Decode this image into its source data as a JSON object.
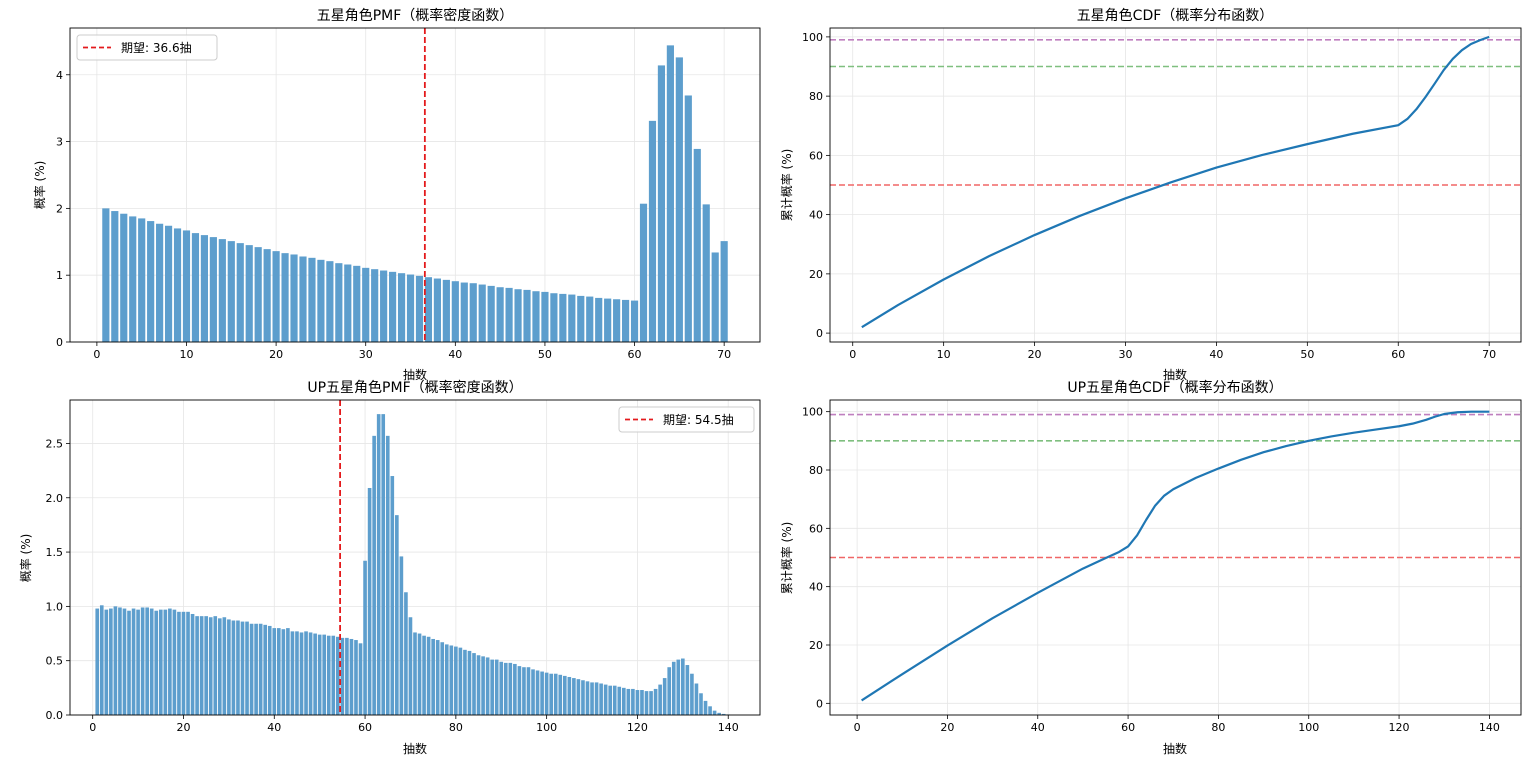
{
  "chart_data": [
    {
      "type": "bar",
      "title": "五星角色PMF（概率密度函数）",
      "xlabel": "抽数",
      "ylabel": "概率 (%)",
      "xlim": [
        -3,
        74
      ],
      "ylim": [
        0,
        4.7
      ],
      "xticks": [
        0,
        10,
        20,
        30,
        40,
        50,
        60,
        70
      ],
      "yticks": [
        0,
        1,
        2,
        3,
        4
      ],
      "grid": true,
      "bar_color": "#5d9ecd",
      "x_range": [
        1,
        70
      ],
      "values": [
        2.0,
        1.96,
        1.92,
        1.88,
        1.85,
        1.81,
        1.77,
        1.74,
        1.7,
        1.67,
        1.63,
        1.6,
        1.57,
        1.54,
        1.51,
        1.48,
        1.45,
        1.42,
        1.39,
        1.36,
        1.33,
        1.31,
        1.28,
        1.26,
        1.23,
        1.21,
        1.18,
        1.16,
        1.14,
        1.11,
        1.09,
        1.07,
        1.05,
        1.03,
        1.01,
        0.99,
        0.97,
        0.95,
        0.93,
        0.91,
        0.89,
        0.88,
        0.86,
        0.84,
        0.82,
        0.81,
        0.79,
        0.78,
        0.76,
        0.75,
        0.73,
        0.72,
        0.71,
        0.69,
        0.68,
        0.66,
        0.65,
        0.64,
        0.63,
        0.62,
        2.07,
        3.31,
        4.14,
        4.44,
        4.26,
        3.69,
        2.89,
        2.06,
        1.34,
        1.51
      ],
      "reference_lines": [
        {
          "axis": "x",
          "value": 36.6,
          "color": "#e41a1c",
          "style": "dashed",
          "label": "期望: 36.6抽"
        }
      ],
      "legend_position": "upper left"
    },
    {
      "type": "line",
      "title": "五星角色CDF（概率分布函数）",
      "xlabel": "抽数",
      "ylabel": "累计概率 (%)",
      "xlim": [
        -2.5,
        73.5
      ],
      "ylim": [
        -3,
        103
      ],
      "xticks": [
        0,
        10,
        20,
        30,
        40,
        50,
        60,
        70
      ],
      "yticks": [
        0,
        20,
        40,
        60,
        80,
        100
      ],
      "grid": true,
      "line_color": "#1f77b4",
      "x": [
        1,
        5,
        10,
        15,
        20,
        25,
        30,
        35,
        40,
        45,
        50,
        55,
        60,
        61,
        62,
        63,
        64,
        65,
        66,
        67,
        68,
        69,
        70
      ],
      "y": [
        2.0,
        9.5,
        18.1,
        26.0,
        33.1,
        39.6,
        45.5,
        50.9,
        55.9,
        60.1,
        63.8,
        67.3,
        70.2,
        72.3,
        75.6,
        79.7,
        84.2,
        88.8,
        92.6,
        95.5,
        97.6,
        98.9,
        100.0
      ],
      "reference_lines": [
        {
          "axis": "y",
          "value": 50,
          "color": "#f06666",
          "style": "dashed"
        },
        {
          "axis": "y",
          "value": 90,
          "color": "#7fbf7f",
          "style": "dashed"
        },
        {
          "axis": "y",
          "value": 99,
          "color": "#bf7fbf",
          "style": "dashed"
        }
      ]
    },
    {
      "type": "bar",
      "title": "UP五星角色PMF（概率密度函数）",
      "xlabel": "抽数",
      "ylabel": "概率 (%)",
      "xlim": [
        -5,
        147
      ],
      "ylim": [
        0,
        2.9
      ],
      "xticks": [
        0,
        20,
        40,
        60,
        80,
        100,
        120,
        140
      ],
      "yticks": [
        0.0,
        0.5,
        1.0,
        1.5,
        2.0,
        2.5
      ],
      "grid": true,
      "bar_color": "#5d9ecd",
      "x_range": [
        1,
        140
      ],
      "values": [
        0.98,
        1.01,
        0.97,
        0.98,
        1.0,
        0.99,
        0.98,
        0.96,
        0.98,
        0.97,
        0.99,
        0.99,
        0.98,
        0.96,
        0.97,
        0.97,
        0.98,
        0.97,
        0.95,
        0.95,
        0.95,
        0.93,
        0.91,
        0.91,
        0.91,
        0.9,
        0.91,
        0.89,
        0.9,
        0.88,
        0.87,
        0.87,
        0.86,
        0.86,
        0.84,
        0.84,
        0.84,
        0.83,
        0.82,
        0.8,
        0.8,
        0.79,
        0.8,
        0.77,
        0.77,
        0.76,
        0.77,
        0.76,
        0.75,
        0.74,
        0.74,
        0.73,
        0.73,
        0.72,
        0.71,
        0.71,
        0.7,
        0.69,
        0.66,
        1.42,
        2.09,
        2.57,
        2.77,
        2.77,
        2.57,
        2.2,
        1.84,
        1.46,
        1.13,
        0.9,
        0.76,
        0.75,
        0.73,
        0.72,
        0.7,
        0.69,
        0.67,
        0.65,
        0.64,
        0.63,
        0.62,
        0.6,
        0.59,
        0.57,
        0.55,
        0.54,
        0.53,
        0.51,
        0.51,
        0.49,
        0.48,
        0.48,
        0.47,
        0.45,
        0.44,
        0.44,
        0.42,
        0.41,
        0.4,
        0.39,
        0.38,
        0.38,
        0.37,
        0.36,
        0.35,
        0.34,
        0.33,
        0.32,
        0.31,
        0.3,
        0.3,
        0.29,
        0.28,
        0.27,
        0.27,
        0.26,
        0.25,
        0.24,
        0.24,
        0.23,
        0.23,
        0.22,
        0.22,
        0.24,
        0.28,
        0.34,
        0.44,
        0.49,
        0.51,
        0.52,
        0.46,
        0.38,
        0.29,
        0.2,
        0.13,
        0.08,
        0.04,
        0.02,
        0.01,
        0.005
      ],
      "reference_lines": [
        {
          "axis": "x",
          "value": 54.5,
          "color": "#e41a1c",
          "style": "dashed",
          "label": "期望: 54.5抽"
        }
      ],
      "legend_position": "upper right"
    },
    {
      "type": "line",
      "title": "UP五星角色CDF（概率分布函数）",
      "xlabel": "抽数",
      "ylabel": "累计概率 (%)",
      "xlim": [
        -6,
        147
      ],
      "ylim": [
        -4,
        104
      ],
      "xticks": [
        0,
        20,
        40,
        60,
        80,
        100,
        120,
        140
      ],
      "yticks": [
        0,
        20,
        40,
        60,
        80,
        100
      ],
      "grid": true,
      "line_color": "#1f77b4",
      "x": [
        1,
        10,
        20,
        30,
        40,
        50,
        55,
        58,
        60,
        62,
        64,
        66,
        68,
        70,
        75,
        80,
        85,
        90,
        95,
        100,
        105,
        110,
        115,
        120,
        123,
        126,
        128,
        130,
        133,
        136,
        140
      ],
      "y": [
        1.0,
        10.0,
        19.8,
        29.2,
        37.9,
        46.2,
        49.8,
        51.9,
        53.8,
        57.6,
        62.9,
        67.8,
        71.2,
        73.4,
        77.3,
        80.5,
        83.5,
        86.1,
        88.2,
        90.0,
        91.5,
        92.8,
        93.9,
        95.0,
        95.9,
        97.2,
        98.3,
        99.2,
        99.8,
        100.0,
        100.0
      ],
      "reference_lines": [
        {
          "axis": "y",
          "value": 50,
          "color": "#f06666",
          "style": "dashed"
        },
        {
          "axis": "y",
          "value": 90,
          "color": "#7fbf7f",
          "style": "dashed"
        },
        {
          "axis": "y",
          "value": 99,
          "color": "#bf7fbf",
          "style": "dashed"
        }
      ]
    }
  ]
}
